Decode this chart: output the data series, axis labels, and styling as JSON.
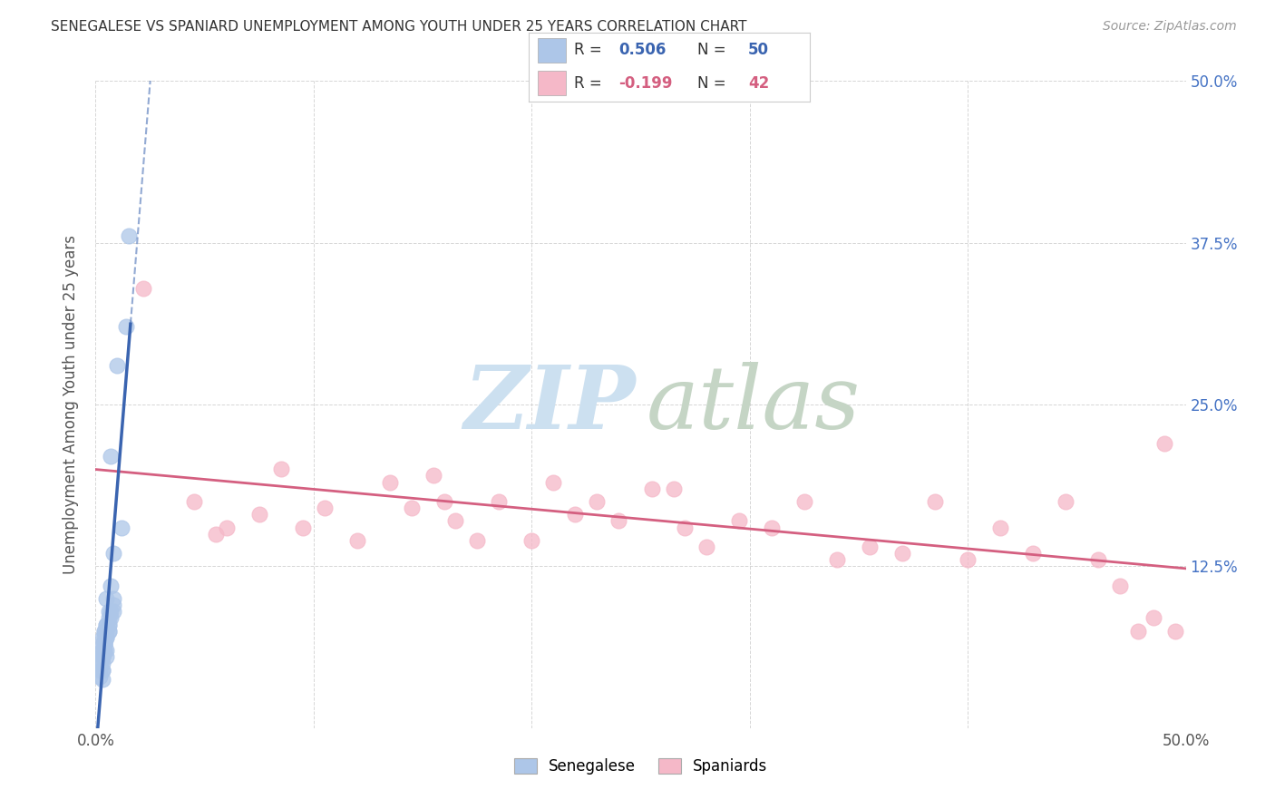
{
  "title": "SENEGALESE VS SPANIARD UNEMPLOYMENT AMONG YOUTH UNDER 25 YEARS CORRELATION CHART",
  "source": "Source: ZipAtlas.com",
  "ylabel": "Unemployment Among Youth under 25 years",
  "xlim": [
    0.0,
    0.5
  ],
  "ylim": [
    0.0,
    0.5
  ],
  "xtick_pos": [
    0.0,
    0.5
  ],
  "xtick_labels": [
    "0.0%",
    "50.0%"
  ],
  "right_ytick_labels": [
    "12.5%",
    "25.0%",
    "37.5%",
    "50.0%"
  ],
  "right_ytick_pos": [
    0.125,
    0.25,
    0.375,
    0.5
  ],
  "blue_color": "#adc6e8",
  "blue_line_color": "#3a64b0",
  "pink_color": "#f5b8c8",
  "pink_line_color": "#d45f80",
  "legend_color": "#4472c4",
  "senegalese_x": [
    0.005,
    0.005,
    0.008,
    0.003,
    0.006,
    0.007,
    0.003,
    0.004,
    0.004,
    0.005,
    0.006,
    0.005,
    0.004,
    0.003,
    0.006,
    0.003,
    0.007,
    0.004,
    0.003,
    0.005,
    0.008,
    0.004,
    0.003,
    0.002,
    0.003,
    0.004,
    0.005,
    0.006,
    0.003,
    0.007,
    0.004,
    0.003,
    0.002,
    0.005,
    0.012,
    0.014,
    0.006,
    0.004,
    0.003,
    0.002,
    0.008,
    0.005,
    0.003,
    0.004,
    0.006,
    0.015,
    0.007,
    0.003,
    0.008,
    0.01
  ],
  "senegalese_y": [
    0.08,
    0.1,
    0.135,
    0.07,
    0.09,
    0.11,
    0.065,
    0.075,
    0.075,
    0.08,
    0.085,
    0.07,
    0.065,
    0.06,
    0.08,
    0.06,
    0.09,
    0.07,
    0.055,
    0.075,
    0.095,
    0.065,
    0.055,
    0.05,
    0.055,
    0.065,
    0.07,
    0.075,
    0.055,
    0.085,
    0.06,
    0.05,
    0.045,
    0.06,
    0.155,
    0.31,
    0.075,
    0.06,
    0.045,
    0.04,
    0.09,
    0.055,
    0.045,
    0.065,
    0.08,
    0.38,
    0.21,
    0.038,
    0.1,
    0.28
  ],
  "spaniard_x": [
    0.022,
    0.045,
    0.055,
    0.06,
    0.075,
    0.085,
    0.095,
    0.105,
    0.12,
    0.135,
    0.145,
    0.155,
    0.16,
    0.165,
    0.175,
    0.185,
    0.2,
    0.21,
    0.22,
    0.23,
    0.24,
    0.255,
    0.265,
    0.27,
    0.28,
    0.295,
    0.31,
    0.325,
    0.34,
    0.355,
    0.37,
    0.385,
    0.4,
    0.415,
    0.43,
    0.445,
    0.46,
    0.47,
    0.478,
    0.485,
    0.49,
    0.495
  ],
  "spaniard_y": [
    0.34,
    0.175,
    0.15,
    0.155,
    0.165,
    0.2,
    0.155,
    0.17,
    0.145,
    0.19,
    0.17,
    0.195,
    0.175,
    0.16,
    0.145,
    0.175,
    0.145,
    0.19,
    0.165,
    0.175,
    0.16,
    0.185,
    0.185,
    0.155,
    0.14,
    0.16,
    0.155,
    0.175,
    0.13,
    0.14,
    0.135,
    0.175,
    0.13,
    0.155,
    0.135,
    0.175,
    0.13,
    0.11,
    0.075,
    0.085,
    0.22,
    0.075
  ]
}
